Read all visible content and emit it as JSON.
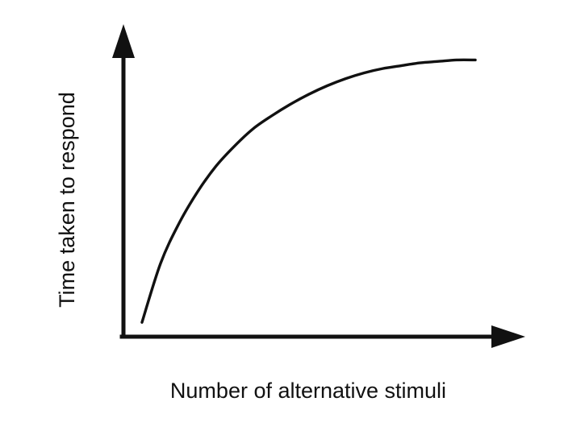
{
  "chart_data": {
    "type": "line",
    "title": "",
    "xlabel": "Number of alternative stimuli",
    "ylabel": "Time taken to respond",
    "x_ticks": [],
    "y_ticks": [],
    "grid": false,
    "legend": "none",
    "xlim": [
      0,
      10
    ],
    "ylim": [
      0,
      10
    ],
    "series": [
      {
        "x": [
          0.5,
          1,
          1.5,
          2,
          2.5,
          3,
          3.5,
          4,
          4.5,
          5,
          5.5,
          6,
          6.5,
          7,
          7.5,
          8,
          8.5,
          9,
          9.5
        ],
        "y": [
          0.5,
          2.55,
          3.95,
          5.05,
          5.95,
          6.65,
          7.25,
          7.7,
          8.1,
          8.45,
          8.75,
          9.0,
          9.2,
          9.35,
          9.45,
          9.55,
          9.6,
          9.65,
          9.65
        ]
      }
    ],
    "colors": {
      "line": "#111111",
      "axes": "#111111",
      "text": "#111111",
      "background": "#ffffff"
    }
  }
}
